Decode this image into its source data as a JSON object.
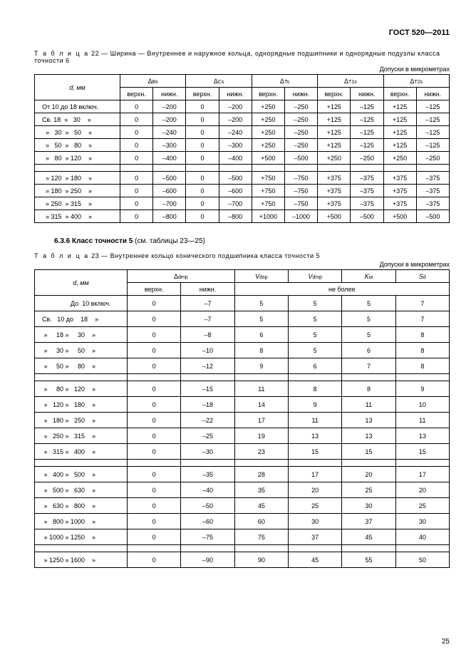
{
  "doc_id": "ГОСТ 520—2011",
  "table22": {
    "caption_prefix": "Т а б л и ц а",
    "caption": "22 — Ширина — Внутреннее и наружное кольца, однорядные подшипники и однорядные подузлы класса точности 6",
    "units": "Допуски в микрометрах",
    "d_label": "d, мм",
    "head_cols": [
      "Δ",
      "Δ",
      "Δ",
      "Δ",
      "Δ"
    ],
    "head_subs": [
      "Bs",
      "Cs",
      "Ts",
      "T1s",
      "T2s"
    ],
    "sub_top": "верхн.",
    "sub_bot": "нижн.",
    "rows": [
      {
        "d": "От 10 до 18 включ.",
        "v": [
          "0",
          "–200",
          "0",
          "–200",
          "+250",
          "–250",
          "+125",
          "–125",
          "+125",
          "–125"
        ]
      },
      {
        "d": "Св. 18  »   30    »",
        "v": [
          "0",
          "–200",
          "0",
          "–200",
          "+250",
          "–250",
          "+125",
          "–125",
          "+125",
          "–125"
        ]
      },
      {
        "d": "  »   30  »   50    »",
        "v": [
          "0",
          "–240",
          "0",
          "–240",
          "+250",
          "–250",
          "+125",
          "–125",
          "+125",
          "–125"
        ]
      },
      {
        "d": "  »   50  »   80    »",
        "v": [
          "0",
          "–300",
          "0",
          "–300",
          "+250",
          "–250",
          "+125",
          "–125",
          "+125",
          "–125"
        ]
      },
      {
        "d": "  »   80  » 120    »",
        "v": [
          "0",
          "–400",
          "0",
          "–400",
          "+500",
          "–500",
          "+250",
          "–250",
          "+250",
          "–250"
        ]
      },
      {
        "d": "  » 120  » 180    »",
        "v": [
          "0",
          "–500",
          "0",
          "–500",
          "+750",
          "–750",
          "+375",
          "–375",
          "+375",
          "–375"
        ],
        "gap_before": true
      },
      {
        "d": "  » 180  » 250    »",
        "v": [
          "0",
          "–600",
          "0",
          "–600",
          "+750",
          "–750",
          "+375",
          "–375",
          "+375",
          "–375"
        ]
      },
      {
        "d": "  » 250  » 315    »",
        "v": [
          "0",
          "–700",
          "0",
          "–700",
          "+750",
          "–750",
          "+375",
          "–375",
          "+375",
          "–375"
        ]
      },
      {
        "d": "  » 315  » 400    »",
        "v": [
          "0",
          "–800",
          "0",
          "–800",
          "+1000",
          "–1000",
          "+500",
          "–500",
          "+500",
          "–500"
        ]
      }
    ]
  },
  "section_heading_bold": "6.3.6  Класс точности 5",
  "section_heading_rest": " (см. таблицы 23—25)",
  "table23": {
    "caption_prefix": "Т а б л и ц а",
    "caption": "23 — Внутреннее кольцо конического подшипника класса точности 5",
    "units": "Допуски в микрометрах",
    "d_label": "d, мм",
    "head_dmp": "Δ",
    "head_dmp_sub": "dmp",
    "col_vdsp": "V",
    "col_vdsp_sub": "dsp",
    "col_vdmp": "V",
    "col_vdmp_sub": "dmp",
    "col_kia": "K",
    "col_kia_sub": "ia",
    "col_sd": "S",
    "col_sd_sub": "d",
    "sub_top": "верхн.",
    "sub_bot": "нижн.",
    "merge_label": "не более",
    "rows": [
      {
        "d": "                До  10 включ.",
        "v": [
          "0",
          "–7",
          "5",
          "5",
          "5",
          "7"
        ]
      },
      {
        "d": "Св.   10 до    18    »",
        "v": [
          "0",
          "–7",
          "5",
          "5",
          "5",
          "7"
        ]
      },
      {
        "d": " »     18 »     30    »",
        "v": [
          "0",
          "–8",
          "6",
          "5",
          "5",
          "8"
        ]
      },
      {
        "d": " »     30 »     50    »",
        "v": [
          "0",
          "–10",
          "8",
          "5",
          "6",
          "8"
        ]
      },
      {
        "d": " »     50 »     80    »",
        "v": [
          "0",
          "–12",
          "9",
          "6",
          "7",
          "8"
        ]
      },
      {
        "d": " »     80 »   120    »",
        "v": [
          "0",
          "–15",
          "11",
          "8",
          "8",
          "9"
        ],
        "gap_before": true
      },
      {
        "d": " »   120 »   180    »",
        "v": [
          "0",
          "–18",
          "14",
          "9",
          "11",
          "10"
        ]
      },
      {
        "d": " »   180 »   250    »",
        "v": [
          "0",
          "–22",
          "17",
          "11",
          "13",
          "11"
        ]
      },
      {
        "d": " »   250 »   315    »",
        "v": [
          "0",
          "–25",
          "19",
          "13",
          "13",
          "13"
        ]
      },
      {
        "d": " »   315 »   400    »",
        "v": [
          "0",
          "–30",
          "23",
          "15",
          "15",
          "15"
        ]
      },
      {
        "d": " »   400 »   500    »",
        "v": [
          "0",
          "–35",
          "28",
          "17",
          "20",
          "17"
        ],
        "gap_before": true
      },
      {
        "d": " »   500 »   630    »",
        "v": [
          "0",
          "–40",
          "35",
          "20",
          "25",
          "20"
        ]
      },
      {
        "d": " »   630 »   800    »",
        "v": [
          "0",
          "–50",
          "45",
          "25",
          "30",
          "25"
        ]
      },
      {
        "d": " »   800 » 1000    »",
        "v": [
          "0",
          "–60",
          "60",
          "30",
          "37",
          "30"
        ]
      },
      {
        "d": " » 1000 » 1250    »",
        "v": [
          "0",
          "–75",
          "75",
          "37",
          "45",
          "40"
        ]
      },
      {
        "d": " » 1250 » 1600    »",
        "v": [
          "0",
          "–90",
          "90",
          "45",
          "55",
          "50"
        ],
        "gap_before": true
      }
    ]
  },
  "page_num": "25"
}
